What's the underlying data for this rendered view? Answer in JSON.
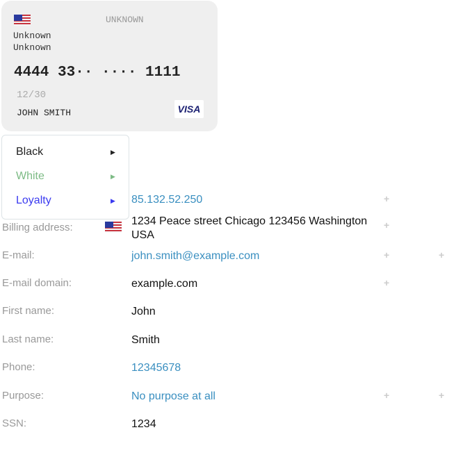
{
  "card": {
    "type": "UNKNOWN",
    "bank_line1": "Unknown",
    "bank_line2": "Unknown",
    "number": "4444 33·· ···· 1111",
    "expiry": "12/30",
    "holder": "JOHN SMITH",
    "brand": "VISA",
    "country_flag": "us-flag-icon"
  },
  "menu": {
    "items": [
      {
        "label": "Black",
        "color": "#222222"
      },
      {
        "label": "White",
        "color": "#7dbb85"
      },
      {
        "label": "Loyalty",
        "color": "#3a3af0"
      }
    ]
  },
  "fields": [
    {
      "label": "",
      "value": "85.132.52.250",
      "link": true
    },
    {
      "label": "Billing address:",
      "value": "1234 Peace street Chicago 123456 Washington USA",
      "link": false
    },
    {
      "label": "E-mail:",
      "value": "john.smith@example.com",
      "link": true
    },
    {
      "label": "E-mail domain:",
      "value": "example.com",
      "link": false
    },
    {
      "label": "First name:",
      "value": "John",
      "link": false
    },
    {
      "label": "Last name:",
      "value": "Smith",
      "link": false
    },
    {
      "label": "Phone:",
      "value": "12345678",
      "link": true
    },
    {
      "label": "Purpose:",
      "value": "No purpose at all",
      "link": true
    },
    {
      "label": "SSN:",
      "value": "1234",
      "link": false
    }
  ],
  "icons": {
    "plus": "+",
    "arrow": "▶"
  }
}
